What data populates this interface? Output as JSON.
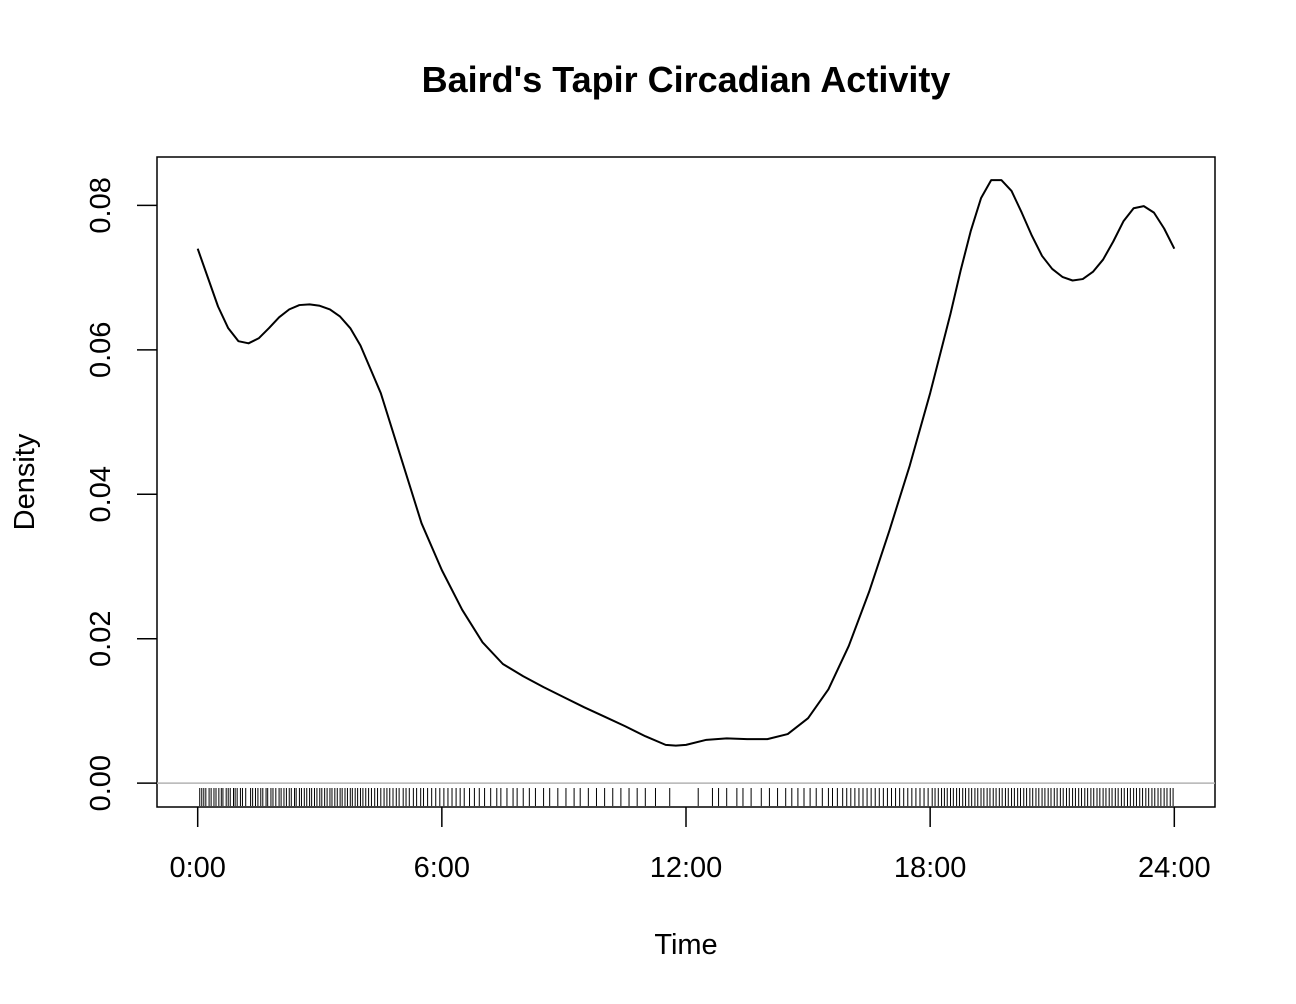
{
  "chart_data": {
    "type": "line",
    "title": "Baird's Tapir Circadian Activity",
    "xlabel": "Time",
    "ylabel": "Density",
    "xlim": [
      -1,
      25
    ],
    "ylim": [
      -0.0033,
      0.0867
    ],
    "x_ticks": [
      {
        "value": 0,
        "label": "0:00"
      },
      {
        "value": 6,
        "label": "6:00"
      },
      {
        "value": 12,
        "label": "12:00"
      },
      {
        "value": 18,
        "label": "18:00"
      },
      {
        "value": 24,
        "label": "24:00"
      }
    ],
    "y_ticks": [
      {
        "value": 0.0,
        "label": "0.00"
      },
      {
        "value": 0.02,
        "label": "0.02"
      },
      {
        "value": 0.04,
        "label": "0.04"
      },
      {
        "value": 0.06,
        "label": "0.06"
      },
      {
        "value": 0.08,
        "label": "0.08"
      }
    ],
    "baseline": {
      "value": 0,
      "color": "#b3b3b3"
    },
    "grid": false,
    "series": [
      {
        "color": "#000000",
        "x": [
          0,
          0.25,
          0.5,
          0.75,
          1.0,
          1.25,
          1.5,
          1.75,
          2.0,
          2.25,
          2.5,
          2.75,
          3.0,
          3.25,
          3.5,
          3.75,
          4.0,
          4.5,
          5.0,
          5.5,
          6.0,
          6.5,
          7.0,
          7.5,
          8.0,
          8.5,
          9.0,
          9.5,
          10.0,
          10.5,
          11.0,
          11.5,
          11.75,
          12.0,
          12.5,
          13.0,
          13.5,
          14.0,
          14.5,
          15.0,
          15.5,
          16.0,
          16.5,
          17.0,
          17.5,
          18.0,
          18.5,
          18.75,
          19.0,
          19.25,
          19.5,
          19.75,
          20.0,
          20.25,
          20.5,
          20.75,
          21.0,
          21.25,
          21.5,
          21.75,
          22.0,
          22.25,
          22.5,
          22.75,
          23.0,
          23.25,
          23.5,
          23.75,
          24.0
        ],
        "y": [
          0.074,
          0.07,
          0.066,
          0.063,
          0.0612,
          0.0609,
          0.0616,
          0.063,
          0.0645,
          0.0656,
          0.0662,
          0.0663,
          0.0661,
          0.0656,
          0.0646,
          0.063,
          0.0606,
          0.054,
          0.045,
          0.036,
          0.0295,
          0.024,
          0.0195,
          0.0165,
          0.0148,
          0.0133,
          0.0119,
          0.0105,
          0.0092,
          0.0079,
          0.0065,
          0.0053,
          0.0052,
          0.0053,
          0.006,
          0.0062,
          0.0061,
          0.0061,
          0.0068,
          0.009,
          0.013,
          0.019,
          0.0265,
          0.035,
          0.044,
          0.054,
          0.065,
          0.071,
          0.0765,
          0.081,
          0.0835,
          0.0835,
          0.082,
          0.079,
          0.0758,
          0.073,
          0.0712,
          0.0701,
          0.0696,
          0.0698,
          0.0708,
          0.0725,
          0.075,
          0.0778,
          0.0796,
          0.0799,
          0.079,
          0.0768,
          0.074
        ]
      }
    ],
    "rug": {
      "color": "#000000",
      "x": [
        0.05,
        0.1,
        0.15,
        0.2,
        0.28,
        0.33,
        0.4,
        0.45,
        0.52,
        0.58,
        0.62,
        0.7,
        0.75,
        0.8,
        0.88,
        0.92,
        0.97,
        1.05,
        1.1,
        1.18,
        1.3,
        1.35,
        1.42,
        1.48,
        1.55,
        1.6,
        1.68,
        1.72,
        1.8,
        1.85,
        1.92,
        2.0,
        2.05,
        2.12,
        2.18,
        2.25,
        2.3,
        2.38,
        2.42,
        2.5,
        2.55,
        2.62,
        2.68,
        2.75,
        2.8,
        2.87,
        2.93,
        3.0,
        3.05,
        3.12,
        3.18,
        3.25,
        3.3,
        3.37,
        3.43,
        3.5,
        3.55,
        3.62,
        3.68,
        3.75,
        3.8,
        3.87,
        3.93,
        4.0,
        4.06,
        4.13,
        4.2,
        4.27,
        4.35,
        4.42,
        4.5,
        4.58,
        4.65,
        4.72,
        4.8,
        4.88,
        4.95,
        5.05,
        5.12,
        5.2,
        5.3,
        5.38,
        5.48,
        5.55,
        5.65,
        5.75,
        5.85,
        5.95,
        6.05,
        6.15,
        6.25,
        6.35,
        6.45,
        6.55,
        6.68,
        6.8,
        6.92,
        7.05,
        7.2,
        7.35,
        7.45,
        7.6,
        7.75,
        7.85,
        8.0,
        8.15,
        8.3,
        8.5,
        8.65,
        8.85,
        9.05,
        9.25,
        9.4,
        9.6,
        9.8,
        10.0,
        10.2,
        10.4,
        10.6,
        10.8,
        11.0,
        11.25,
        11.6,
        12.3,
        12.65,
        12.8,
        13.0,
        13.25,
        13.4,
        13.6,
        13.85,
        14.05,
        14.25,
        14.45,
        14.6,
        14.75,
        14.9,
        15.05,
        15.2,
        15.35,
        15.5,
        15.6,
        15.72,
        15.85,
        15.95,
        16.05,
        16.15,
        16.25,
        16.35,
        16.45,
        16.55,
        16.65,
        16.75,
        16.85,
        16.95,
        17.05,
        17.15,
        17.25,
        17.35,
        17.45,
        17.55,
        17.65,
        17.75,
        17.85,
        17.95,
        18.05,
        18.12,
        18.2,
        18.28,
        18.35,
        18.42,
        18.5,
        18.57,
        18.65,
        18.72,
        18.8,
        18.87,
        18.95,
        19.02,
        19.1,
        19.17,
        19.25,
        19.32,
        19.4,
        19.47,
        19.55,
        19.62,
        19.7,
        19.77,
        19.85,
        19.92,
        20.0,
        20.07,
        20.15,
        20.22,
        20.3,
        20.37,
        20.45,
        20.52,
        20.6,
        20.67,
        20.75,
        20.82,
        20.9,
        20.97,
        21.05,
        21.12,
        21.2,
        21.27,
        21.35,
        21.42,
        21.5,
        21.57,
        21.65,
        21.72,
        21.8,
        21.87,
        21.95,
        22.02,
        22.1,
        22.17,
        22.25,
        22.32,
        22.4,
        22.47,
        22.55,
        22.62,
        22.7,
        22.77,
        22.85,
        22.92,
        23.0,
        23.07,
        23.15,
        23.22,
        23.3,
        23.37,
        23.45,
        23.52,
        23.6,
        23.67,
        23.75,
        23.82,
        23.9,
        23.97
      ]
    }
  }
}
